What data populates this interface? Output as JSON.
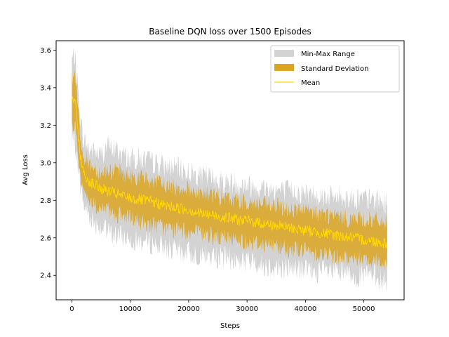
{
  "chart_data": {
    "type": "area",
    "title": "Baseline DQN loss over 1500 Episodes",
    "xlabel": "Steps",
    "ylabel": "Avg Loss",
    "xlim": [
      -2700,
      56900
    ],
    "ylim": [
      2.27,
      3.65
    ],
    "x_ticks": [
      0,
      10000,
      20000,
      30000,
      40000,
      50000
    ],
    "y_ticks": [
      2.4,
      2.6,
      2.8,
      3.0,
      3.2,
      3.4,
      3.6
    ],
    "x_tick_labels": [
      "0",
      "10000",
      "20000",
      "30000",
      "40000",
      "50000"
    ],
    "y_tick_labels": [
      "2.4",
      "2.6",
      "2.8",
      "3.0",
      "3.2",
      "3.4",
      "3.6"
    ],
    "x": [
      0,
      500,
      1000,
      1500,
      2000,
      3000,
      4000,
      5000,
      6000,
      8000,
      10000,
      12000,
      14000,
      16000,
      18000,
      20000,
      22000,
      24000,
      26000,
      28000,
      30000,
      32000,
      34000,
      36000,
      38000,
      40000,
      42000,
      44000,
      46000,
      48000,
      50000,
      52000,
      54000
    ],
    "series": [
      {
        "name": "Min-Max Range",
        "kind": "band",
        "color": "#d3d3d3",
        "lower": [
          3.1,
          3.12,
          3.0,
          2.86,
          2.78,
          2.72,
          2.68,
          2.66,
          2.63,
          2.61,
          2.6,
          2.58,
          2.57,
          2.55,
          2.53,
          2.52,
          2.51,
          2.5,
          2.5,
          2.48,
          2.48,
          2.46,
          2.45,
          2.44,
          2.44,
          2.43,
          2.42,
          2.42,
          2.41,
          2.4,
          2.4,
          2.4,
          2.36
        ],
        "upper": [
          3.55,
          3.58,
          3.4,
          3.22,
          3.12,
          3.07,
          3.06,
          3.04,
          3.09,
          3.06,
          3.02,
          3.02,
          3.0,
          2.98,
          2.97,
          2.95,
          2.93,
          2.92,
          2.9,
          2.89,
          2.88,
          2.87,
          2.86,
          2.85,
          2.85,
          2.84,
          2.83,
          2.82,
          2.82,
          2.81,
          2.81,
          2.8,
          2.79
        ]
      },
      {
        "name": "Standard Deviation",
        "kind": "band",
        "color": "#daa520",
        "lower": [
          3.18,
          3.22,
          3.08,
          2.93,
          2.84,
          2.8,
          2.77,
          2.76,
          2.74,
          2.72,
          2.7,
          2.68,
          2.67,
          2.65,
          2.64,
          2.63,
          2.62,
          2.61,
          2.6,
          2.59,
          2.58,
          2.57,
          2.56,
          2.55,
          2.54,
          2.53,
          2.52,
          2.51,
          2.5,
          2.49,
          2.49,
          2.48,
          2.47
        ],
        "upper": [
          3.45,
          3.48,
          3.3,
          3.13,
          3.04,
          2.99,
          2.97,
          2.95,
          2.96,
          2.95,
          2.93,
          2.92,
          2.9,
          2.88,
          2.87,
          2.86,
          2.84,
          2.83,
          2.81,
          2.8,
          2.79,
          2.78,
          2.77,
          2.76,
          2.75,
          2.74,
          2.73,
          2.72,
          2.71,
          2.7,
          2.7,
          2.69,
          2.68
        ]
      },
      {
        "name": "Mean",
        "kind": "line",
        "color": "#ffd700",
        "values": [
          3.32,
          3.35,
          3.18,
          3.03,
          2.94,
          2.9,
          2.88,
          2.86,
          2.85,
          2.83,
          2.81,
          2.8,
          2.79,
          2.77,
          2.76,
          2.75,
          2.73,
          2.72,
          2.71,
          2.7,
          2.69,
          2.68,
          2.67,
          2.66,
          2.65,
          2.64,
          2.63,
          2.62,
          2.61,
          2.6,
          2.59,
          2.58,
          2.57
        ]
      }
    ],
    "legend_position": "top-right",
    "grid": false
  }
}
